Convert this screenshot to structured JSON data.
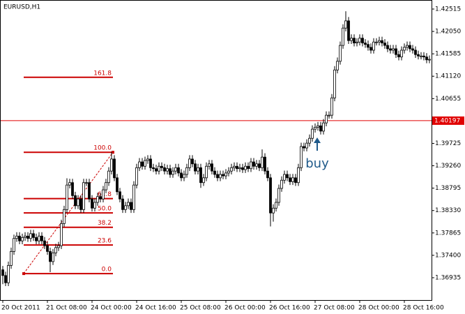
{
  "chart_data": {
    "type": "candlestick",
    "title": "EURUSD,H1",
    "color": "#000000",
    "ylim": [
      1.36471,
      1.42703
    ],
    "yticks": [
      1.42515,
      {
        "value": 1.4205,
        "label": "1.42050"
      },
      1.41585,
      {
        "value": 1.4112,
        "label": "1.41120"
      },
      1.40655,
      1.39725,
      {
        "value": 1.3926,
        "label": "1.39260"
      },
      1.38795,
      {
        "value": 1.3833,
        "label": "1.38330"
      },
      1.37865,
      {
        "value": 1.374,
        "label": "1.37400"
      },
      1.36935
    ],
    "current_price": 1.40197,
    "current_color": "#e00000",
    "categories": [
      "20 Oct 2011",
      null,
      null,
      null,
      null,
      null,
      null,
      null,
      null,
      null,
      null,
      null,
      null,
      null,
      null,
      null,
      "21 Oct 08:00",
      null,
      null,
      null,
      null,
      null,
      null,
      null,
      null,
      null,
      null,
      null,
      null,
      null,
      null,
      null,
      "24 Oct 00:00",
      null,
      null,
      null,
      null,
      null,
      null,
      null,
      null,
      null,
      null,
      null,
      null,
      null,
      null,
      null,
      "24 Oct 16:00",
      null,
      null,
      null,
      null,
      null,
      null,
      null,
      null,
      null,
      null,
      null,
      null,
      null,
      null,
      null,
      "25 Oct 08:00",
      null,
      null,
      null,
      null,
      null,
      null,
      null,
      null,
      null,
      null,
      null,
      null,
      null,
      null,
      null,
      "26 Oct 00:00",
      null,
      null,
      null,
      null,
      null,
      null,
      null,
      null,
      null,
      null,
      null,
      null,
      null,
      null,
      null,
      "26 Oct 16:00",
      null,
      null,
      null,
      null,
      null,
      null,
      null,
      null,
      null,
      null,
      null,
      null,
      null,
      null,
      null,
      "27 Oct 08:00",
      null,
      null,
      null,
      null,
      null,
      null,
      null,
      null,
      null,
      null,
      null,
      null,
      null,
      null,
      null,
      "28 Oct 00:00",
      null,
      null,
      null,
      null,
      null,
      null,
      null,
      null,
      null,
      null,
      null,
      null,
      null,
      null,
      null,
      "28 Oct 16:00",
      null,
      null,
      null,
      null,
      null,
      null,
      null,
      null,
      null
    ],
    "ohlc": [
      [
        1.371,
        1.3718,
        1.368,
        1.3698
      ],
      [
        1.3698,
        1.3706,
        1.3676,
        1.3683
      ],
      [
        1.3683,
        1.3727,
        1.3676,
        1.3719
      ],
      [
        1.3719,
        1.3756,
        1.3712,
        1.3748
      ],
      [
        1.3748,
        1.3783,
        1.3741,
        1.3775
      ],
      [
        1.3775,
        1.3788,
        1.3768,
        1.378
      ],
      [
        1.378,
        1.3788,
        1.3763,
        1.377
      ],
      [
        1.377,
        1.3785,
        1.3763,
        1.3777
      ],
      [
        1.3777,
        1.3788,
        1.377,
        1.378
      ],
      [
        1.378,
        1.3788,
        1.3768,
        1.3775
      ],
      [
        1.3775,
        1.3793,
        1.3768,
        1.3785
      ],
      [
        1.3785,
        1.3793,
        1.377,
        1.3777
      ],
      [
        1.3777,
        1.3785,
        1.3763,
        1.377
      ],
      [
        1.377,
        1.3788,
        1.3763,
        1.378
      ],
      [
        1.378,
        1.3788,
        1.3763,
        1.377
      ],
      [
        1.377,
        1.3778,
        1.3753,
        1.376
      ],
      [
        1.376,
        1.3768,
        1.3741,
        1.3748
      ],
      [
        1.3748,
        1.3756,
        1.3705,
        1.3727
      ],
      [
        1.3727,
        1.3753,
        1.372,
        1.3745
      ],
      [
        1.3745,
        1.3764,
        1.3738,
        1.3756
      ],
      [
        1.3756,
        1.3768,
        1.3749,
        1.376
      ],
      [
        1.376,
        1.3814,
        1.3753,
        1.3806
      ],
      [
        1.3806,
        1.3843,
        1.3799,
        1.3835
      ],
      [
        1.3835,
        1.39,
        1.3828,
        1.3886
      ],
      [
        1.3886,
        1.3899,
        1.3879,
        1.3891
      ],
      [
        1.3891,
        1.3899,
        1.3857,
        1.3864
      ],
      [
        1.3864,
        1.3872,
        1.3836,
        1.3843
      ],
      [
        1.3843,
        1.3865,
        1.3836,
        1.3857
      ],
      [
        1.3857,
        1.3865,
        1.3828,
        1.3835
      ],
      [
        1.3835,
        1.3899,
        1.3828,
        1.3891
      ],
      [
        1.3891,
        1.3899,
        1.3884,
        1.3891
      ],
      [
        1.3891,
        1.3899,
        1.385,
        1.3857
      ],
      [
        1.3857,
        1.3865,
        1.3831,
        1.3838
      ],
      [
        1.3838,
        1.3858,
        1.3831,
        1.385
      ],
      [
        1.385,
        1.387,
        1.3843,
        1.3862
      ],
      [
        1.3862,
        1.387,
        1.385,
        1.3857
      ],
      [
        1.3857,
        1.3884,
        1.385,
        1.3876
      ],
      [
        1.3876,
        1.3899,
        1.3869,
        1.3891
      ],
      [
        1.3891,
        1.3923,
        1.3884,
        1.3915
      ],
      [
        1.3915,
        1.3955,
        1.3908,
        1.394
      ],
      [
        1.394,
        1.3948,
        1.3894,
        1.3901
      ],
      [
        1.3901,
        1.3909,
        1.3865,
        1.3872
      ],
      [
        1.3872,
        1.388,
        1.385,
        1.3857
      ],
      [
        1.3857,
        1.3865,
        1.3828,
        1.3835
      ],
      [
        1.3835,
        1.3851,
        1.3828,
        1.3843
      ],
      [
        1.3843,
        1.3858,
        1.3836,
        1.385
      ],
      [
        1.385,
        1.3858,
        1.3828,
        1.3835
      ],
      [
        1.3835,
        1.3894,
        1.3828,
        1.3886
      ],
      [
        1.3886,
        1.393,
        1.3879,
        1.3922
      ],
      [
        1.3922,
        1.3942,
        1.3915,
        1.3934
      ],
      [
        1.3934,
        1.3942,
        1.3918,
        1.3925
      ],
      [
        1.3925,
        1.3945,
        1.3918,
        1.3937
      ],
      [
        1.3937,
        1.3948,
        1.393,
        1.394
      ],
      [
        1.394,
        1.3948,
        1.3915,
        1.3922
      ],
      [
        1.3922,
        1.393,
        1.3913,
        1.392
      ],
      [
        1.392,
        1.3928,
        1.3908,
        1.3915
      ],
      [
        1.3915,
        1.3933,
        1.3908,
        1.3925
      ],
      [
        1.3925,
        1.3933,
        1.3915,
        1.3922
      ],
      [
        1.3922,
        1.393,
        1.3908,
        1.3915
      ],
      [
        1.3915,
        1.3928,
        1.3908,
        1.392
      ],
      [
        1.392,
        1.3928,
        1.3901,
        1.3908
      ],
      [
        1.3908,
        1.3923,
        1.3901,
        1.3915
      ],
      [
        1.3915,
        1.393,
        1.3908,
        1.3922
      ],
      [
        1.3922,
        1.393,
        1.3904,
        1.3911
      ],
      [
        1.3911,
        1.3919,
        1.3894,
        1.3901
      ],
      [
        1.3901,
        1.3916,
        1.3894,
        1.3908
      ],
      [
        1.3908,
        1.393,
        1.3901,
        1.3922
      ],
      [
        1.3922,
        1.3948,
        1.3915,
        1.394
      ],
      [
        1.394,
        1.3948,
        1.3923,
        1.393
      ],
      [
        1.393,
        1.3938,
        1.3908,
        1.3915
      ],
      [
        1.3915,
        1.393,
        1.3908,
        1.3922
      ],
      [
        1.3922,
        1.393,
        1.388,
        1.3891
      ],
      [
        1.3891,
        1.3909,
        1.3884,
        1.3901
      ],
      [
        1.3901,
        1.3933,
        1.3894,
        1.3925
      ],
      [
        1.3925,
        1.3938,
        1.3918,
        1.393
      ],
      [
        1.393,
        1.3938,
        1.3908,
        1.3915
      ],
      [
        1.3915,
        1.3923,
        1.3901,
        1.3908
      ],
      [
        1.3908,
        1.3916,
        1.3894,
        1.3901
      ],
      [
        1.3901,
        1.3916,
        1.3894,
        1.3908
      ],
      [
        1.3908,
        1.3916,
        1.3898,
        1.3905
      ],
      [
        1.3905,
        1.3919,
        1.3898,
        1.3911
      ],
      [
        1.3911,
        1.3923,
        1.3904,
        1.3915
      ],
      [
        1.3915,
        1.393,
        1.3908,
        1.3922
      ],
      [
        1.3922,
        1.3933,
        1.3915,
        1.3925
      ],
      [
        1.3925,
        1.3933,
        1.3913,
        1.392
      ],
      [
        1.392,
        1.393,
        1.3913,
        1.3922
      ],
      [
        1.3922,
        1.393,
        1.3911,
        1.3918
      ],
      [
        1.3918,
        1.3933,
        1.3911,
        1.3925
      ],
      [
        1.3925,
        1.3933,
        1.3913,
        1.392
      ],
      [
        1.392,
        1.3942,
        1.3913,
        1.3934
      ],
      [
        1.3934,
        1.3942,
        1.3918,
        1.3925
      ],
      [
        1.3925,
        1.3938,
        1.3918,
        1.393
      ],
      [
        1.393,
        1.3938,
        1.3915,
        1.3922
      ],
      [
        1.3922,
        1.396,
        1.3915,
        1.3944
      ],
      [
        1.3944,
        1.3952,
        1.3908,
        1.3915
      ],
      [
        1.3915,
        1.3923,
        1.3894,
        1.3901
      ],
      [
        1.3901,
        1.3909,
        1.38,
        1.3828
      ],
      [
        1.3828,
        1.3846,
        1.381,
        1.3838
      ],
      [
        1.3838,
        1.3858,
        1.3831,
        1.385
      ],
      [
        1.385,
        1.3887,
        1.3843,
        1.3879
      ],
      [
        1.3879,
        1.3904,
        1.3872,
        1.3896
      ],
      [
        1.3896,
        1.3916,
        1.3889,
        1.3908
      ],
      [
        1.3908,
        1.3916,
        1.3894,
        1.3901
      ],
      [
        1.3901,
        1.3909,
        1.3886,
        1.3893
      ],
      [
        1.3893,
        1.3909,
        1.3886,
        1.3901
      ],
      [
        1.3901,
        1.3909,
        1.3884,
        1.3891
      ],
      [
        1.3891,
        1.393,
        1.3884,
        1.3922
      ],
      [
        1.3922,
        1.3974,
        1.3915,
        1.3966
      ],
      [
        1.3966,
        1.3974,
        1.3956,
        1.3963
      ],
      [
        1.3963,
        1.3981,
        1.3956,
        1.3973
      ],
      [
        1.3973,
        1.3991,
        1.3966,
        1.3983
      ],
      [
        1.3983,
        1.401,
        1.3976,
        1.4002
      ],
      [
        1.4002,
        1.4014,
        1.3995,
        1.4006
      ],
      [
        1.4006,
        1.4017,
        1.3999,
        1.4009
      ],
      [
        1.4009,
        1.4017,
        1.3991,
        1.3998
      ],
      [
        1.3998,
        1.4023,
        1.3991,
        1.4015
      ],
      [
        1.4015,
        1.4039,
        1.4008,
        1.4031
      ],
      [
        1.4031,
        1.4039,
        1.4024,
        1.4031
      ],
      [
        1.4031,
        1.4075,
        1.4024,
        1.4067
      ],
      [
        1.4067,
        1.4133,
        1.406,
        1.4125
      ],
      [
        1.4125,
        1.4151,
        1.4118,
        1.4143
      ],
      [
        1.4143,
        1.4184,
        1.4136,
        1.4176
      ],
      [
        1.4176,
        1.422,
        1.4169,
        1.4212
      ],
      [
        1.4212,
        1.4247,
        1.4205,
        1.4227
      ],
      [
        1.4227,
        1.4235,
        1.4179,
        1.4186
      ],
      [
        1.4186,
        1.4199,
        1.4179,
        1.4191
      ],
      [
        1.4191,
        1.4199,
        1.4174,
        1.4181
      ],
      [
        1.4181,
        1.4191,
        1.4174,
        1.4183
      ],
      [
        1.4183,
        1.4199,
        1.4176,
        1.4191
      ],
      [
        1.4191,
        1.4199,
        1.4174,
        1.4181
      ],
      [
        1.4181,
        1.4189,
        1.4171,
        1.4178
      ],
      [
        1.4178,
        1.4186,
        1.4165,
        1.4172
      ],
      [
        1.4172,
        1.418,
        1.4159,
        1.4166
      ],
      [
        1.4166,
        1.4191,
        1.4159,
        1.4183
      ],
      [
        1.4183,
        1.4191,
        1.4176,
        1.4183
      ],
      [
        1.4183,
        1.4194,
        1.4176,
        1.4186
      ],
      [
        1.4186,
        1.4194,
        1.4174,
        1.4181
      ],
      [
        1.4181,
        1.4189,
        1.4169,
        1.4176
      ],
      [
        1.4176,
        1.4184,
        1.4162,
        1.4169
      ],
      [
        1.4169,
        1.4177,
        1.4159,
        1.4166
      ],
      [
        1.4166,
        1.4177,
        1.4159,
        1.4169
      ],
      [
        1.4169,
        1.4177,
        1.415,
        1.4157
      ],
      [
        1.4157,
        1.4165,
        1.4145,
        1.4152
      ],
      [
        1.4152,
        1.4174,
        1.4145,
        1.4166
      ],
      [
        1.4166,
        1.418,
        1.4159,
        1.4172
      ],
      [
        1.4172,
        1.4184,
        1.4165,
        1.4176
      ],
      [
        1.4176,
        1.4184,
        1.4162,
        1.4169
      ],
      [
        1.4169,
        1.4177,
        1.4159,
        1.4166
      ],
      [
        1.4166,
        1.4174,
        1.415,
        1.4157
      ],
      [
        1.4157,
        1.4165,
        1.4147,
        1.4154
      ],
      [
        1.4154,
        1.4162,
        1.4147,
        1.4154
      ],
      [
        1.4154,
        1.4162,
        1.4145,
        1.4152
      ],
      [
        1.4152,
        1.416,
        1.4139,
        1.4146
      ],
      [
        1.4146,
        1.4155,
        1.4139,
        1.4147
      ]
    ],
    "fibo": {
      "low": 1.3702,
      "high": 1.3954,
      "color": "#cc0000",
      "levels": [
        {
          "value": 0,
          "label": "0.0"
        },
        23.6,
        {
          "value": 38.2,
          "label": "38.2"
        },
        {
          "value": 50,
          "label": "50.0"
        },
        61.8,
        {
          "value": 100,
          "label": "100.0"
        },
        161.8
      ]
    },
    "annotation": {
      "text": "buy",
      "color": "#1f5a8a"
    }
  }
}
